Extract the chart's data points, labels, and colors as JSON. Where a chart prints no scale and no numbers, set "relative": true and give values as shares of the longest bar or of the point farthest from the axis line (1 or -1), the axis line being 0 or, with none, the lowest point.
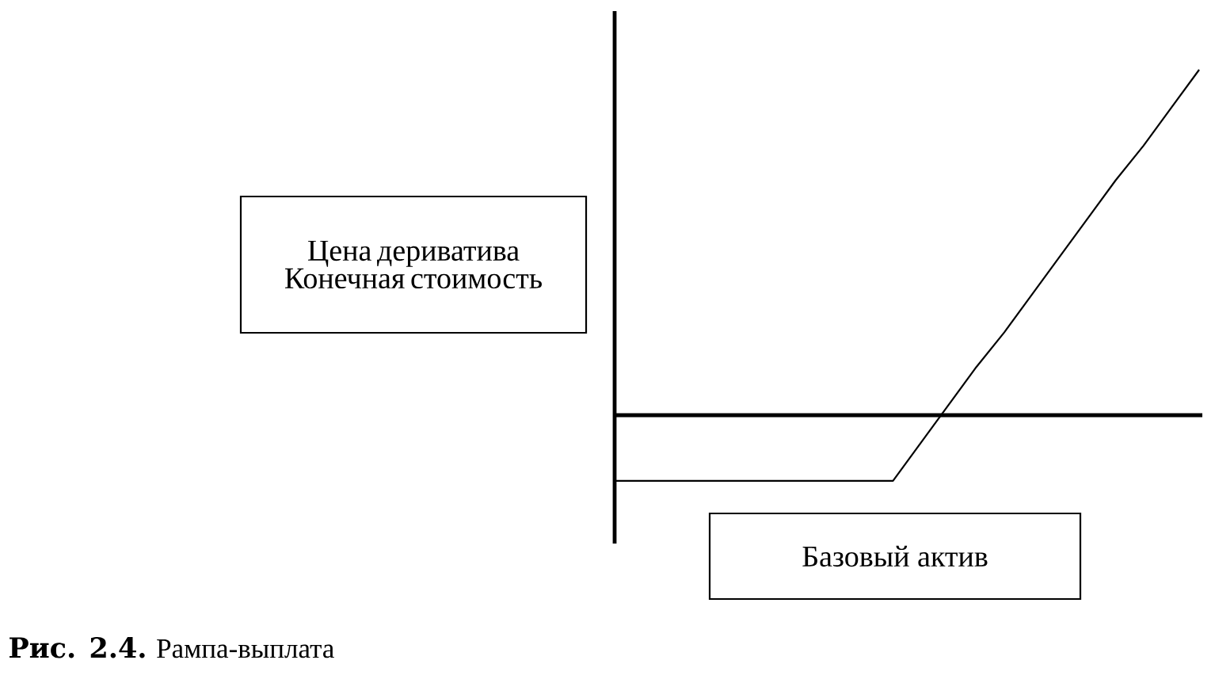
{
  "chart_data": {
    "type": "line",
    "relative": true,
    "xlabel": "Базовый актив",
    "ylabel": "Цена дериватива Конечная стоимость",
    "annotations": [
      "**Рис. 2.4.** Рампа-выплата"
    ],
    "categories": [
      null,
      null,
      null,
      null,
      null,
      null,
      null,
      null,
      null,
      null,
      null,
      null,
      null,
      null,
      null,
      null,
      null,
      null,
      null,
      null,
      null,
      null
    ],
    "color": "#000000",
    "values": [
      -0.19,
      -0.19,
      -0.19,
      -0.19,
      -0.19,
      -0.19,
      -0.19,
      -0.19,
      -0.19,
      -0.19,
      -0.19,
      -0.08,
      0.03,
      0.14,
      0.24,
      0.35,
      0.46,
      0.57,
      0.68,
      0.78,
      0.89,
      1
    ]
  }
}
